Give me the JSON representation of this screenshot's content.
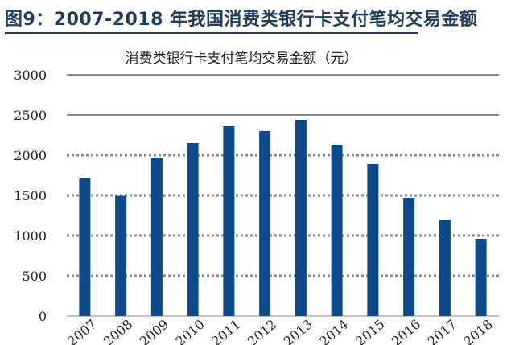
{
  "figure_title": "图9：2007-2018 年我国消费类银行卡支付笔均交易金额",
  "chart_data": {
    "type": "bar",
    "title": "消费类银行卡支付笔均交易金额（元）",
    "xlabel": "",
    "ylabel": "",
    "categories": [
      "2007",
      "2008",
      "2009",
      "2010",
      "2011",
      "2012",
      "2013",
      "2014",
      "2015",
      "2016",
      "2017",
      "2018"
    ],
    "values": [
      1720,
      1495,
      1965,
      2150,
      2360,
      2300,
      2440,
      2130,
      1890,
      1470,
      1190,
      960
    ],
    "ylim": [
      0,
      3000
    ],
    "yticks": [
      "0",
      "500",
      "1000",
      "1500",
      "2000",
      "2500",
      "3000"
    ],
    "grid": true,
    "bar_color": "#0d4a8c"
  }
}
